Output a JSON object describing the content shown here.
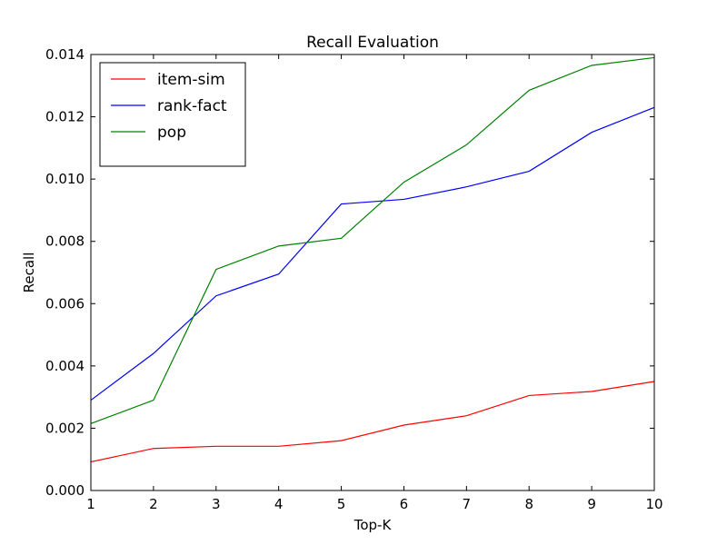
{
  "chart_data": {
    "type": "line",
    "title": "Recall Evaluation",
    "xlabel": "Top-K",
    "ylabel": "Recall",
    "x": [
      1,
      2,
      3,
      4,
      5,
      6,
      7,
      8,
      9,
      10
    ],
    "xlim": [
      1,
      10
    ],
    "ylim": [
      0.0,
      0.014
    ],
    "xticks": [
      "1",
      "2",
      "3",
      "4",
      "5",
      "6",
      "7",
      "8",
      "9",
      "10"
    ],
    "yticks": [
      "0.000",
      "0.002",
      "0.004",
      "0.006",
      "0.008",
      "0.010",
      "0.012",
      "0.014"
    ],
    "grid": false,
    "legend_position": "top-left",
    "series": [
      {
        "name": "item-sim",
        "color": "#ff0000",
        "values": [
          0.00092,
          0.00135,
          0.00142,
          0.00142,
          0.0016,
          0.0021,
          0.0024,
          0.00305,
          0.00318,
          0.0035
        ]
      },
      {
        "name": "rank-fact",
        "color": "#0000ff",
        "values": [
          0.0029,
          0.0044,
          0.00625,
          0.00695,
          0.0092,
          0.00935,
          0.00975,
          0.01025,
          0.0115,
          0.0123
        ]
      },
      {
        "name": "pop",
        "color": "#008000",
        "values": [
          0.00215,
          0.0029,
          0.0071,
          0.00785,
          0.0081,
          0.0099,
          0.0111,
          0.01285,
          0.01365,
          0.0139
        ]
      }
    ]
  }
}
